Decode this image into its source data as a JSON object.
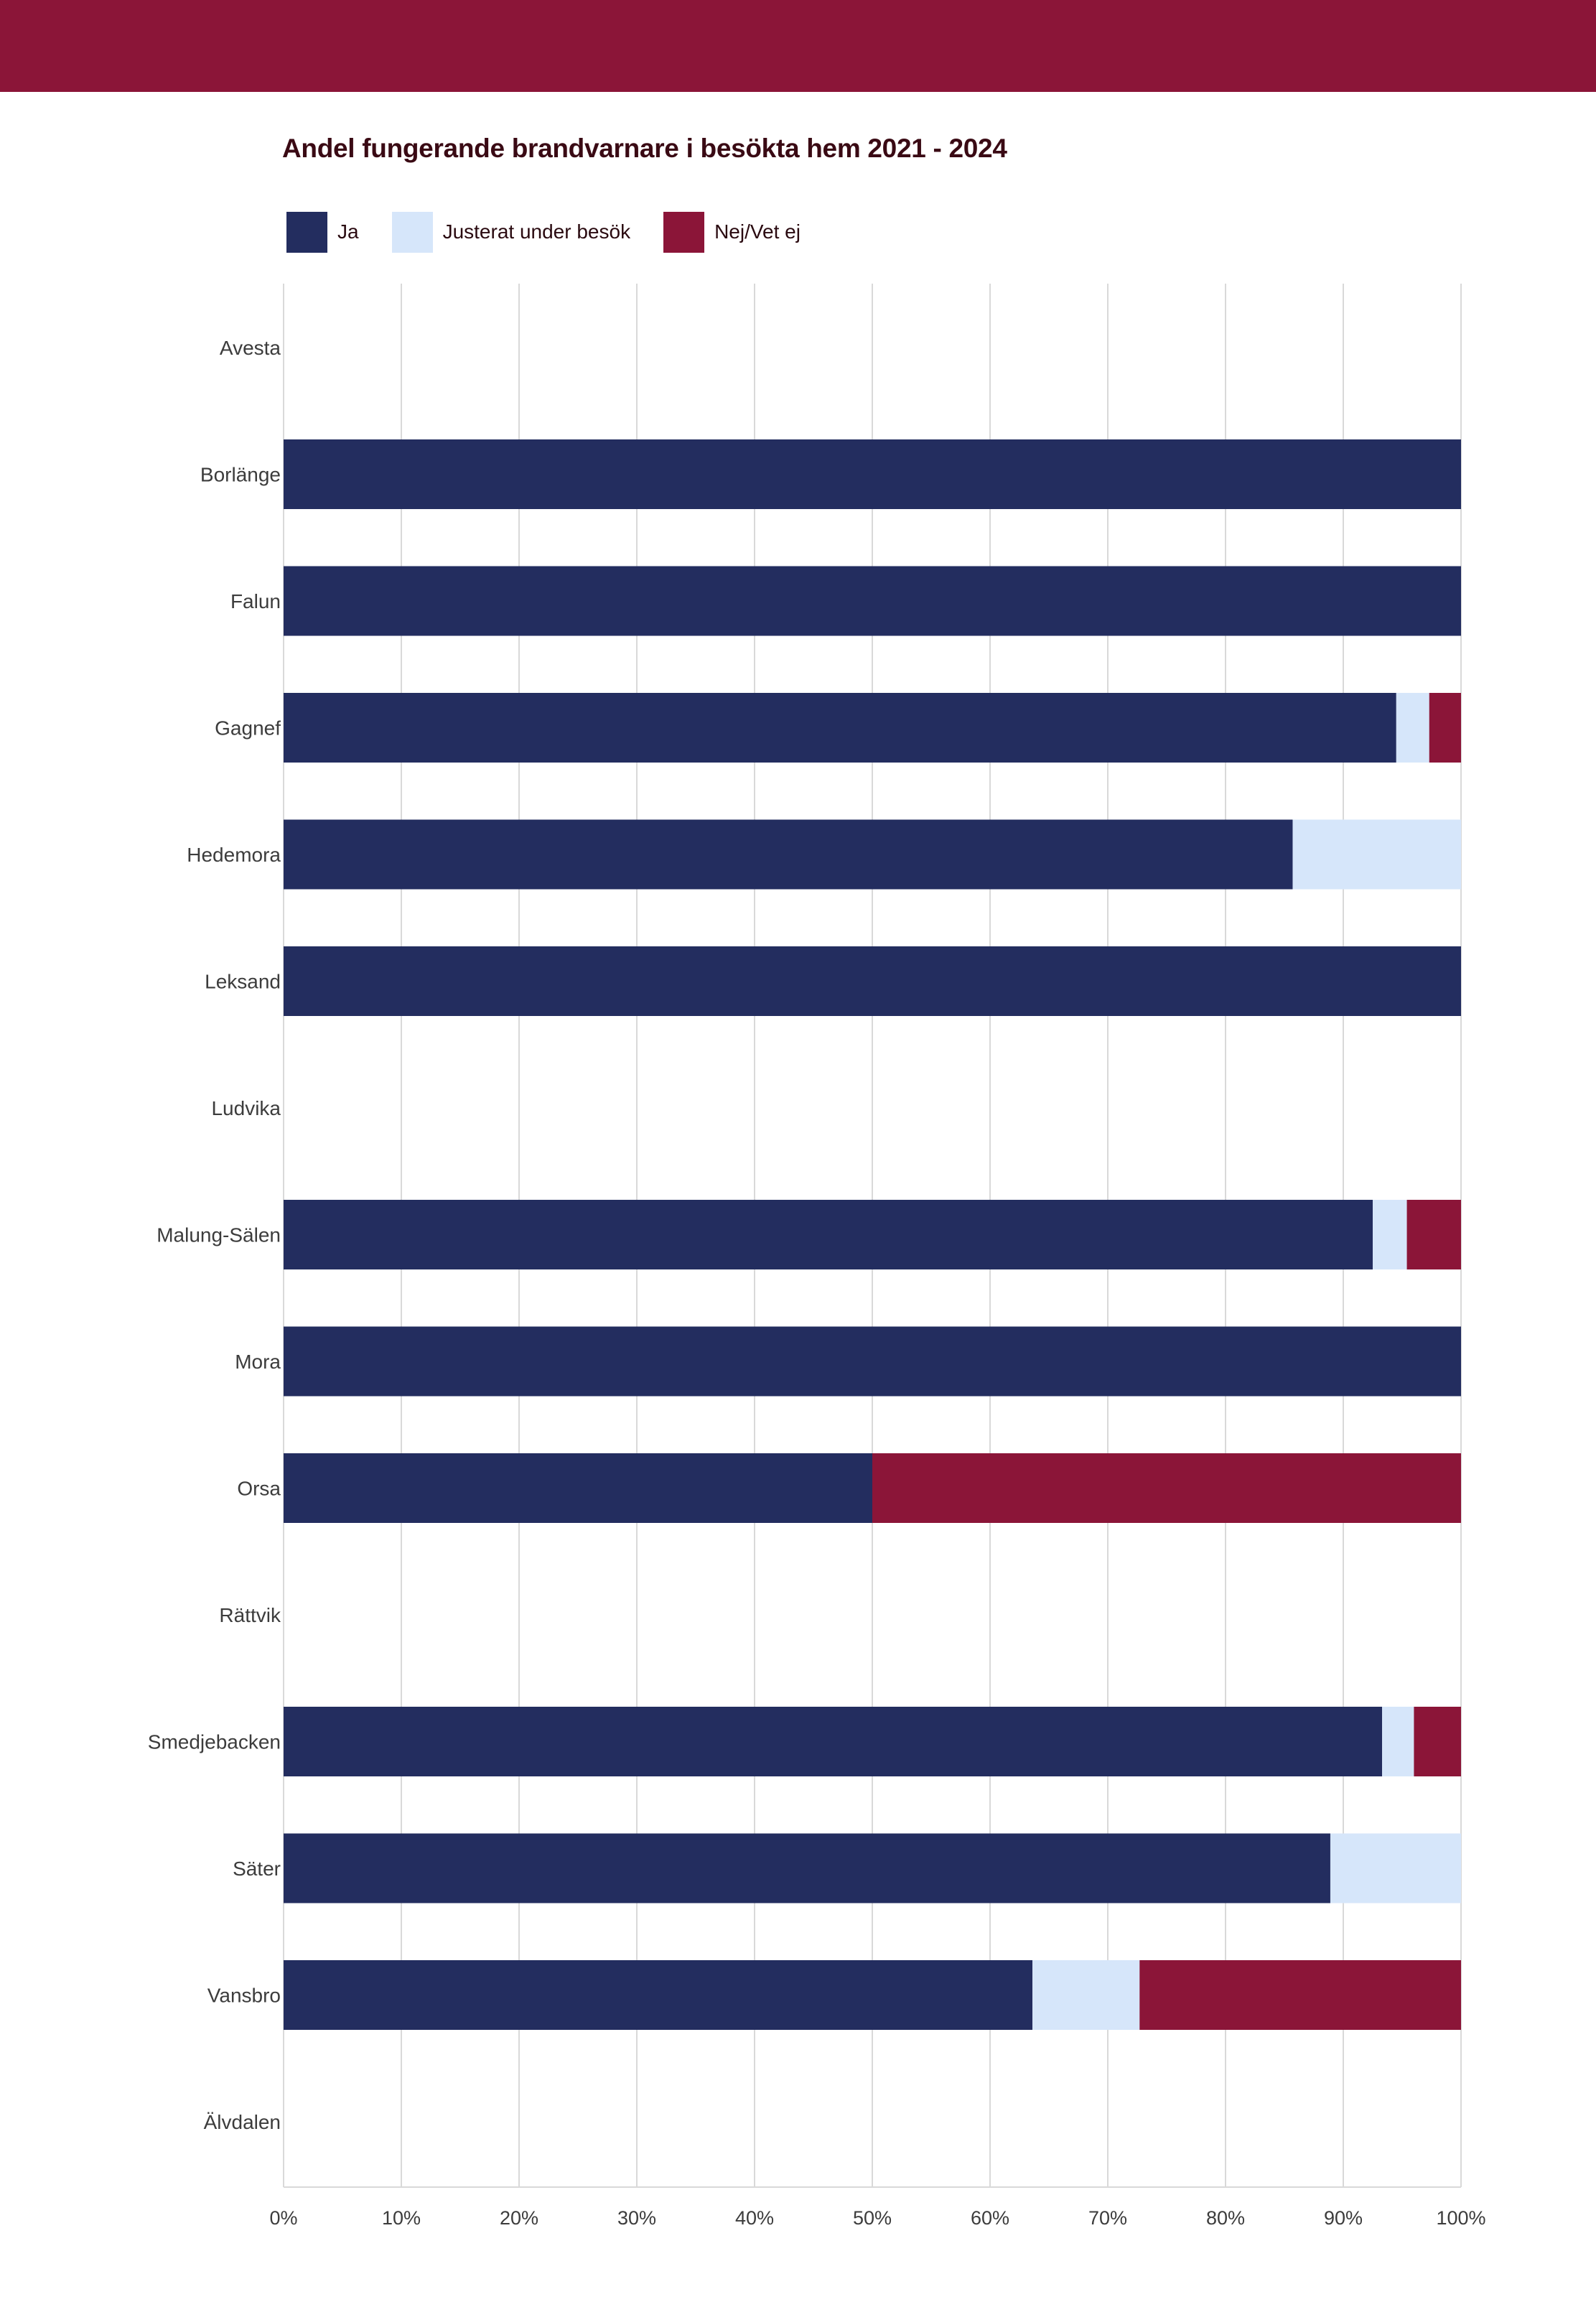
{
  "colors": {
    "header_band": "#8b1538",
    "ja": "#232d5f",
    "justerat": "#d6e6fa",
    "nej": "#8b1538",
    "grid": "#d9d9d9",
    "axis_text": "#3c3c3c"
  },
  "chart_data": {
    "type": "bar",
    "orientation": "horizontal",
    "stacked": true,
    "percent": true,
    "title": "Andel fungerande brandvarnare i besökta hem 2021 - 2024",
    "xlabel": "",
    "ylabel": "",
    "xlim": [
      0,
      100
    ],
    "x_ticks": [
      "0%",
      "10%",
      "20%",
      "30%",
      "40%",
      "50%",
      "60%",
      "70%",
      "80%",
      "90%",
      "100%"
    ],
    "grid": "vertical",
    "legend": "top-left",
    "categories": [
      "Avesta",
      "Borlänge",
      "Falun",
      "Gagnef",
      "Hedemora",
      "Leksand",
      "Ludvika",
      "Malung-Sälen",
      "Mora",
      "Orsa",
      "Rättvik",
      "Smedjebacken",
      "Säter",
      "Vansbro",
      "Älvdalen"
    ],
    "series": [
      {
        "name": "Ja",
        "color": "#232d5f",
        "values": [
          0,
          100,
          100,
          94.5,
          85.7,
          100,
          0,
          92.5,
          100,
          50,
          0,
          93.3,
          88.9,
          63.6,
          0
        ]
      },
      {
        "name": "Justerat under besök",
        "color": "#d6e6fa",
        "values": [
          0,
          0,
          0,
          2.8,
          14.3,
          0,
          0,
          2.9,
          0,
          0,
          0,
          2.7,
          11.1,
          9.1,
          0
        ]
      },
      {
        "name": "Nej/Vet ej",
        "color": "#8b1538",
        "values": [
          0,
          0,
          0,
          2.7,
          0,
          0,
          0,
          4.6,
          0,
          50,
          0,
          4.0,
          0,
          27.3,
          0
        ]
      }
    ]
  }
}
